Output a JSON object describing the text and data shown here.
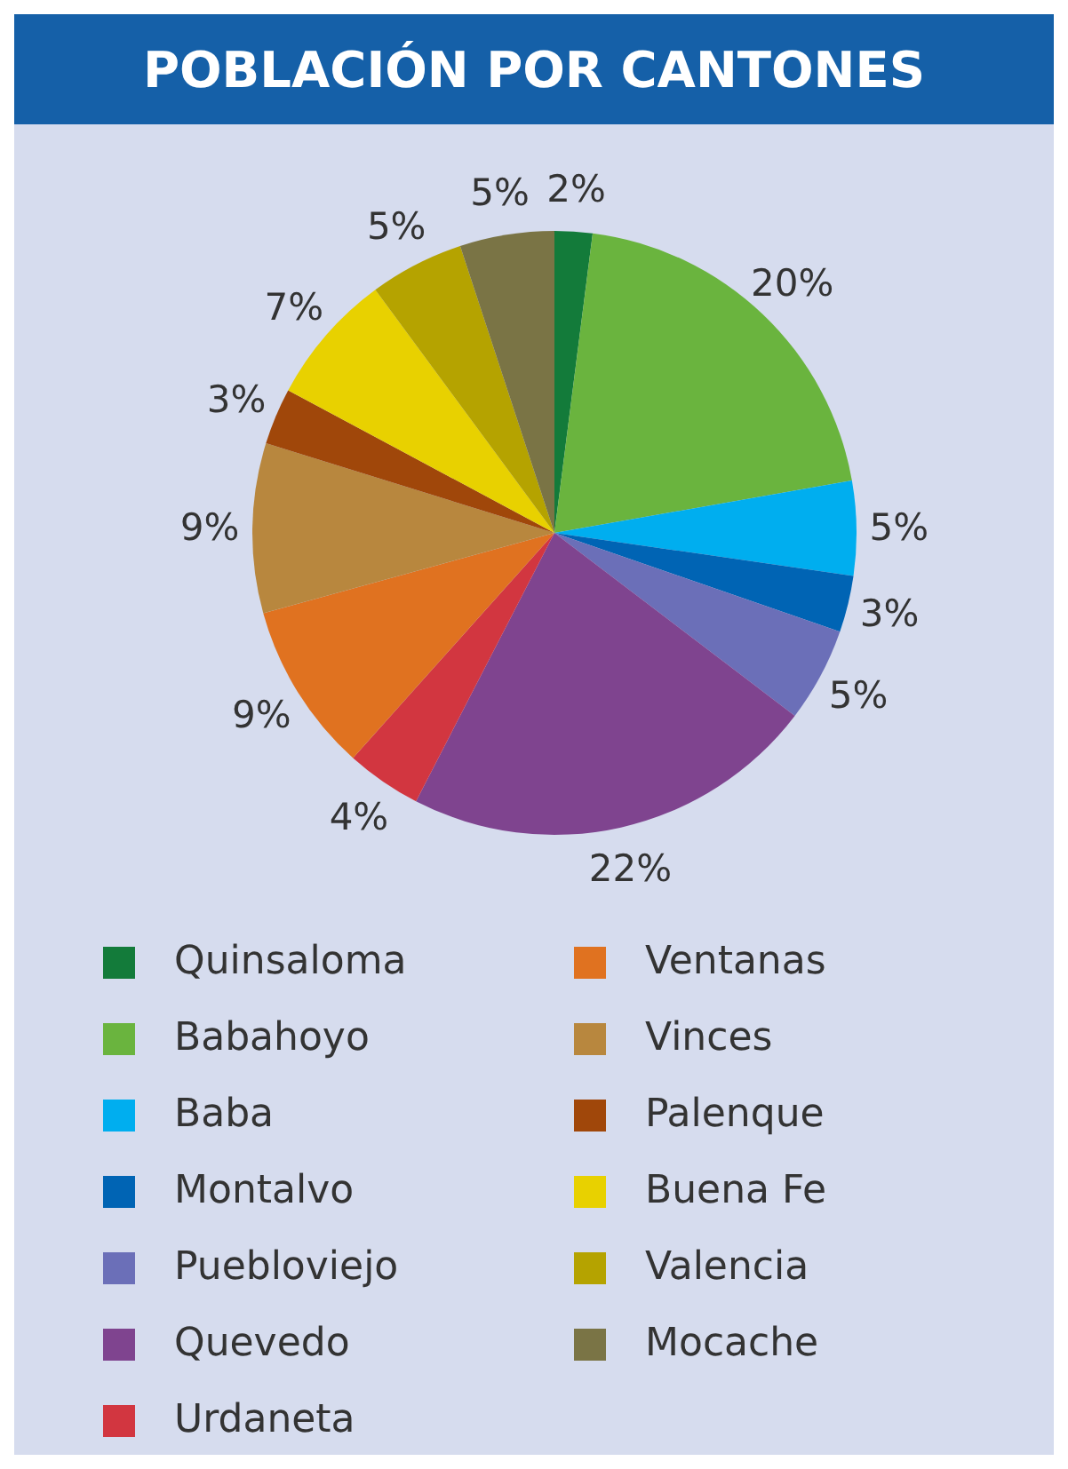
{
  "chart_data": {
    "type": "pie",
    "title": "POBLACIÓN POR CANTONES",
    "categories": [
      "Quinsaloma",
      "Babahoyo",
      "Baba",
      "Montalvo",
      "Puebloviejo",
      "Quevedo",
      "Urdaneta",
      "Ventanas",
      "Vinces",
      "Palenque",
      "Buena Fe",
      "Valencia",
      "Mocache"
    ],
    "values": [
      2,
      20,
      5,
      3,
      5,
      22,
      4,
      9,
      9,
      3,
      7,
      5,
      5
    ],
    "value_labels": [
      "2%",
      "20%",
      "5%",
      "3%",
      "5%",
      "22%",
      "4%",
      "9%",
      "9%",
      "3%",
      "7%",
      "5%",
      "5%"
    ],
    "colors": [
      "#137b3a",
      "#6ab43e",
      "#00aeef",
      "#0064b4",
      "#6b6fb8",
      "#7f448f",
      "#d23640",
      "#e07220",
      "#b8873e",
      "#a0470a",
      "#e8d100",
      "#b5a300",
      "#7a7445"
    ],
    "legend": "bottom"
  }
}
